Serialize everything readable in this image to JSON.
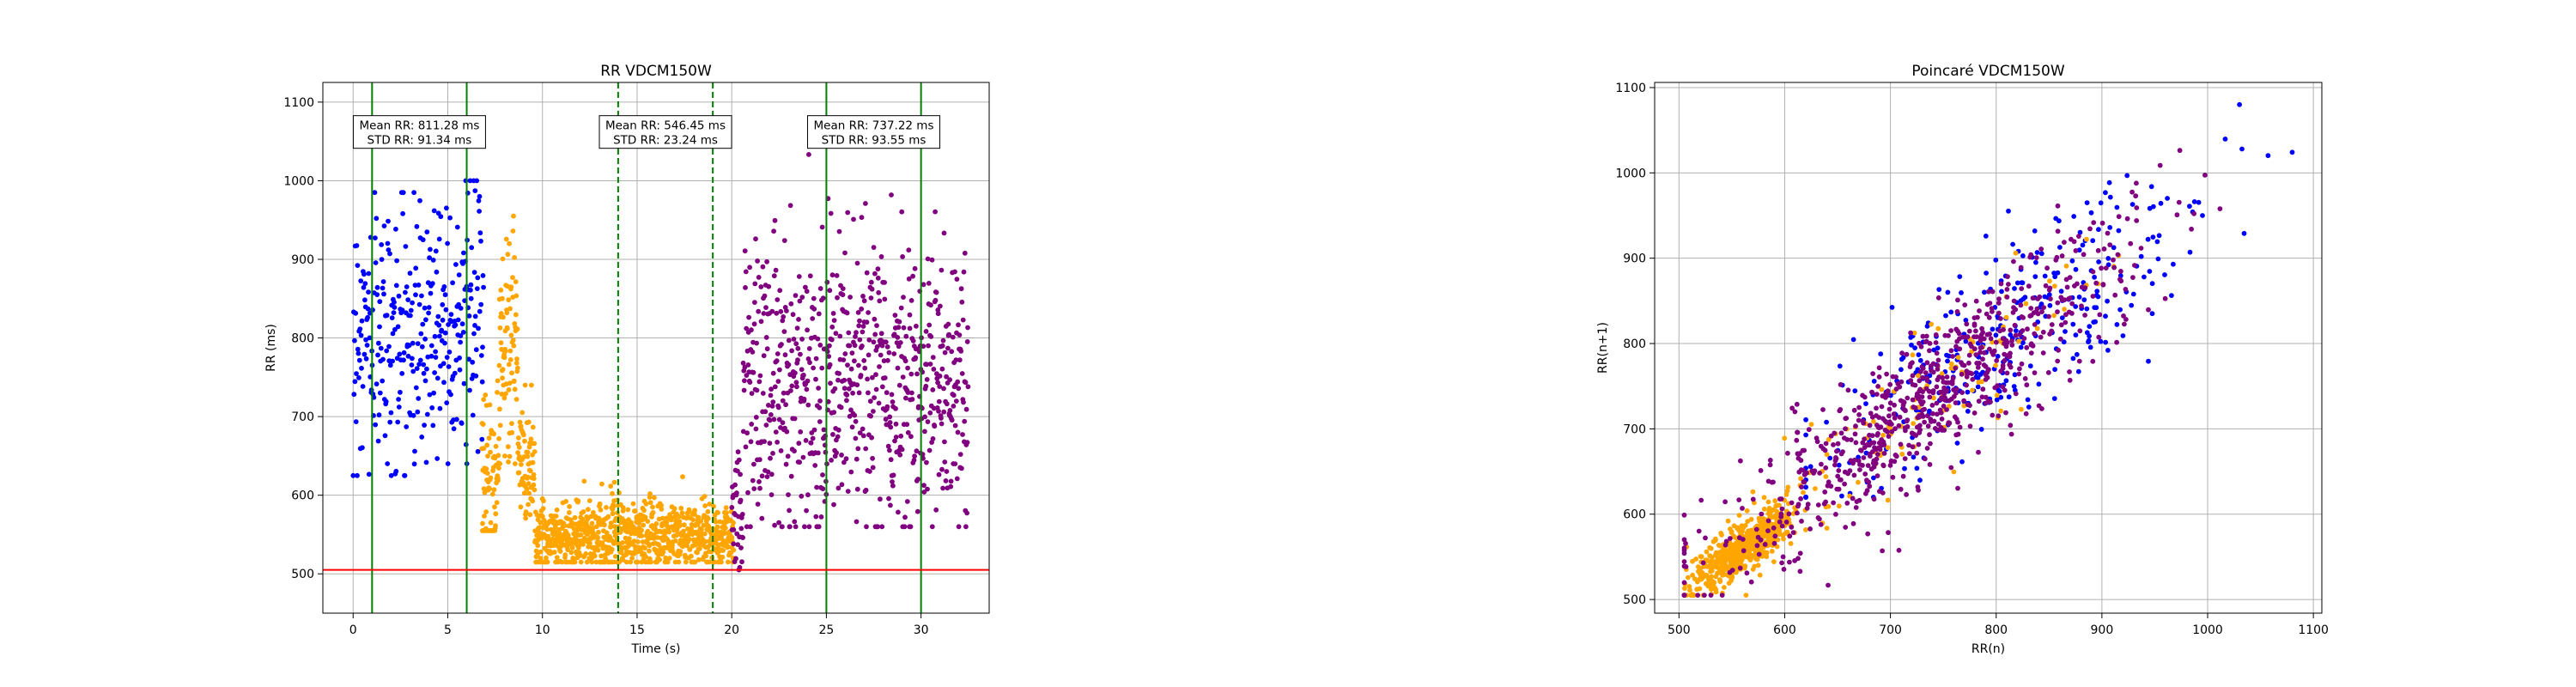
{
  "figure": {
    "colors": {
      "blue": "#0000ff",
      "orange": "#ffa500",
      "purple": "#800080",
      "green": "#008000",
      "red": "#ff0000",
      "grid": "#b0b0b0"
    }
  },
  "chart_data": [
    {
      "type": "scatter",
      "title": "RR VDCM150W",
      "xlabel": "Time (s)",
      "ylabel": "RR (ms)",
      "xlim": [
        -1.6,
        33.6
      ],
      "ylim": [
        450,
        1125
      ],
      "xticks": [
        0,
        5,
        10,
        15,
        20,
        25,
        30
      ],
      "yticks": [
        500,
        600,
        700,
        800,
        900,
        1000,
        1100
      ],
      "grid": true,
      "hline": {
        "y": 505,
        "color": "red"
      },
      "vlines": [
        {
          "x": 1.0,
          "style": "solid",
          "color": "green"
        },
        {
          "x": 6.0,
          "style": "solid",
          "color": "green"
        },
        {
          "x": 14.0,
          "style": "dashed",
          "color": "green"
        },
        {
          "x": 19.0,
          "style": "dashed",
          "color": "green"
        },
        {
          "x": 25.0,
          "style": "solid",
          "color": "green"
        },
        {
          "x": 30.0,
          "style": "solid",
          "color": "green"
        }
      ],
      "annotations": [
        {
          "x": 3.5,
          "y": 1062,
          "lines": [
            "Mean RR: 811.28 ms",
            "STD RR: 91.34 ms"
          ]
        },
        {
          "x": 16.5,
          "y": 1062,
          "lines": [
            "Mean RR: 546.45 ms",
            "STD RR: 23.24 ms"
          ]
        },
        {
          "x": 27.5,
          "y": 1062,
          "lines": [
            "Mean RR: 737.22 ms",
            "STD RR: 93.55 ms"
          ]
        }
      ],
      "series": [
        {
          "color": "blue",
          "approx_points": 330,
          "profile": [
            {
              "x": [
                0,
                4
              ],
              "mean": 805,
              "sd": 85,
              "lo": 625,
              "hi": 985
            },
            {
              "x": [
                4,
                6.9
              ],
              "mean": 830,
              "sd": 90,
              "lo": 640,
              "hi": 1000
            }
          ]
        },
        {
          "color": "orange",
          "approx_points": 1080,
          "profile": [
            {
              "x": [
                6.8,
                7.7
              ],
              "mean": 620,
              "sd": 60,
              "lo": 555,
              "hi": 780
            },
            {
              "x": [
                7.7,
                8.7
              ],
              "mean": 790,
              "sd": 75,
              "lo": 640,
              "hi": 955
            },
            {
              "x": [
                8.7,
                9.6
              ],
              "mean": 640,
              "sd": 40,
              "lo": 570,
              "hi": 740
            },
            {
              "x": [
                9.6,
                20.1
              ],
              "mean": 548,
              "sd": 22,
              "lo": 515,
              "hi": 650
            }
          ]
        },
        {
          "color": "purple",
          "approx_points": 760,
          "profile": [
            {
              "x": [
                20.0,
                20.6
              ],
              "mean": 580,
              "sd": 40,
              "lo": 505,
              "hi": 700
            },
            {
              "x": [
                20.6,
                32.5
              ],
              "mean": 745,
              "sd": 90,
              "lo": 560,
              "hi": 1035
            }
          ]
        }
      ]
    },
    {
      "type": "scatter",
      "title": "Poincaré VDCM150W",
      "xlabel": "RR(n)",
      "ylabel": "RR(n+1)",
      "xlim": [
        477,
        1108
      ],
      "ylim": [
        484,
        1106
      ],
      "xticks": [
        500,
        600,
        700,
        800,
        900,
        1000,
        1100
      ],
      "yticks": [
        500,
        600,
        700,
        800,
        900,
        1000,
        1100
      ],
      "grid": true,
      "series": [
        {
          "color": "blue",
          "approx_points": 330,
          "mean": 815,
          "sd": 90,
          "diag_sd": 55,
          "lo": 620,
          "hi": 1080
        },
        {
          "color": "orange",
          "approx_points": 700,
          "mean": 560,
          "sd": 22,
          "diag_sd": 15,
          "lo": 505,
          "hi": 960,
          "tail_points": 120,
          "tail_mean": 720,
          "tail_sd": 90
        },
        {
          "color": "purple",
          "approx_points": 760,
          "mean": 730,
          "sd": 90,
          "diag_sd": 45,
          "lo": 505,
          "hi": 1040
        }
      ]
    }
  ]
}
